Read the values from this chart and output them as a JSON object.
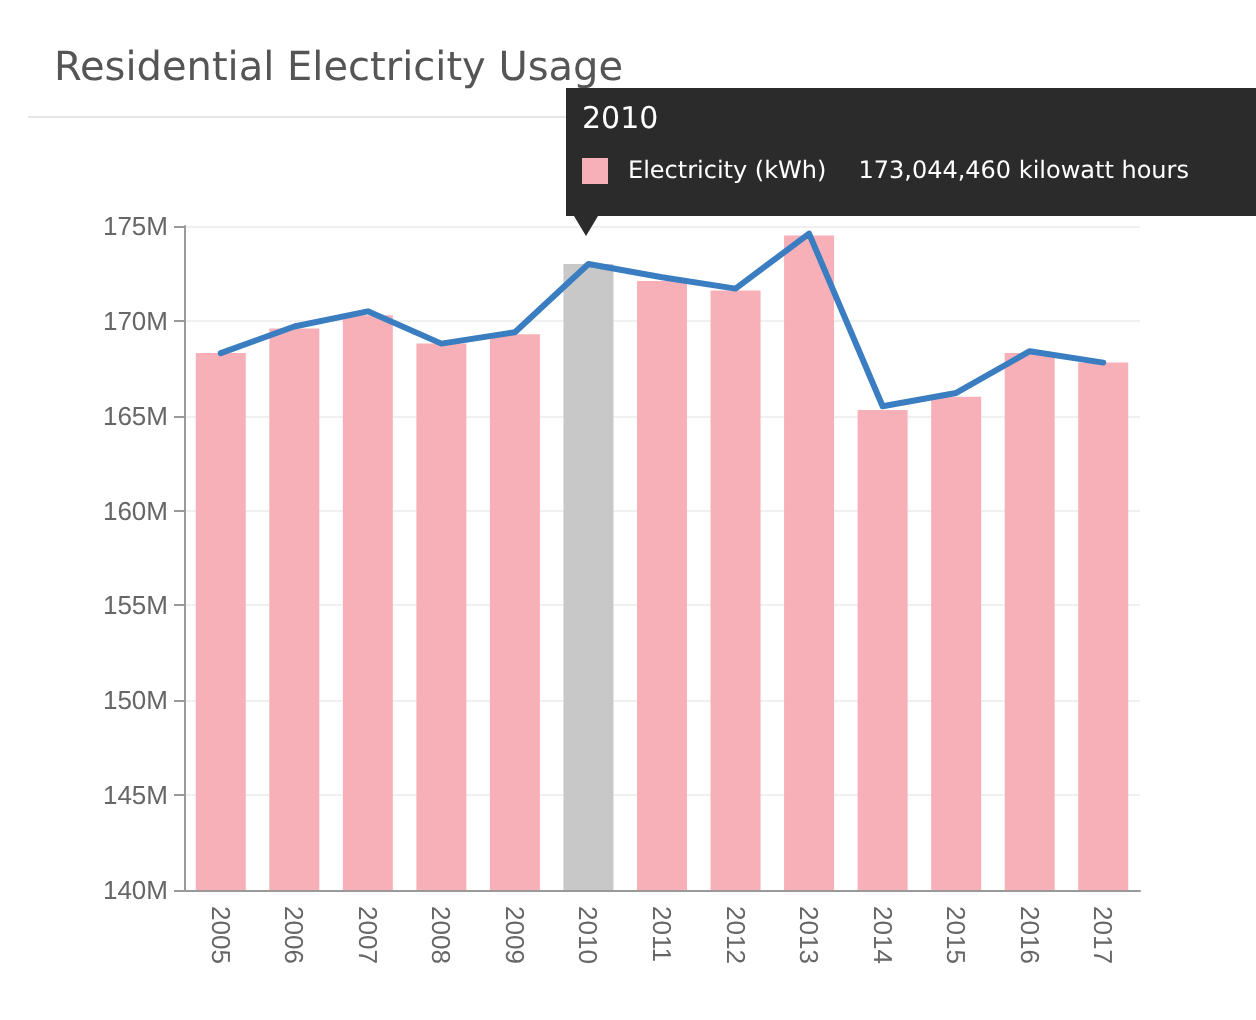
{
  "chart_data": {
    "type": "bar",
    "title": "Residential Electricity Usage",
    "categories": [
      "2005",
      "2006",
      "2007",
      "2008",
      "2009",
      "2010",
      "2011",
      "2012",
      "2013",
      "2014",
      "2015",
      "2016",
      "2017"
    ],
    "series": [
      {
        "name": "Electricity (kWh)",
        "color": "#f7b0b7",
        "colors": [
          "#f7b0b7",
          "#f7b0b7",
          "#f7b0b7",
          "#f7b0b7",
          "#f7b0b7",
          "#c8c8c8",
          "#f7b0b7",
          "#f7b0b7",
          "#f7b0b7",
          "#f7b0b7",
          "#f7b0b7",
          "#f7b0b7",
          "#f7b0b7"
        ],
        "values": [
          168.3,
          169.6,
          170.3,
          168.8,
          169.3,
          173.0,
          172.1,
          171.6,
          174.5,
          165.3,
          166.0,
          168.3,
          167.8
        ]
      },
      {
        "type": "line",
        "color": "#3a7dc0",
        "values": [
          168.3,
          169.7,
          170.5,
          168.8,
          169.4,
          173.0,
          172.3,
          171.7,
          174.6,
          165.5,
          166.2,
          168.4,
          167.8
        ]
      }
    ],
    "ylim": [
      140,
      175
    ],
    "yticks": [
      {
        "value": 140,
        "label": "140M"
      },
      {
        "value": 145,
        "label": "145M"
      },
      {
        "value": 150,
        "label": "150M"
      },
      {
        "value": 155,
        "label": "155M"
      },
      {
        "value": 160,
        "label": "160M"
      },
      {
        "value": 165,
        "label": "165M"
      },
      {
        "value": 170,
        "label": "170M"
      },
      {
        "value": 175,
        "label": "175M"
      }
    ],
    "annotations": [
      "2010",
      "173,044,460 kilowatt hours"
    ],
    "grid": "y",
    "marker": "none",
    "line_style": "solid",
    "legend": "top right"
  }
}
